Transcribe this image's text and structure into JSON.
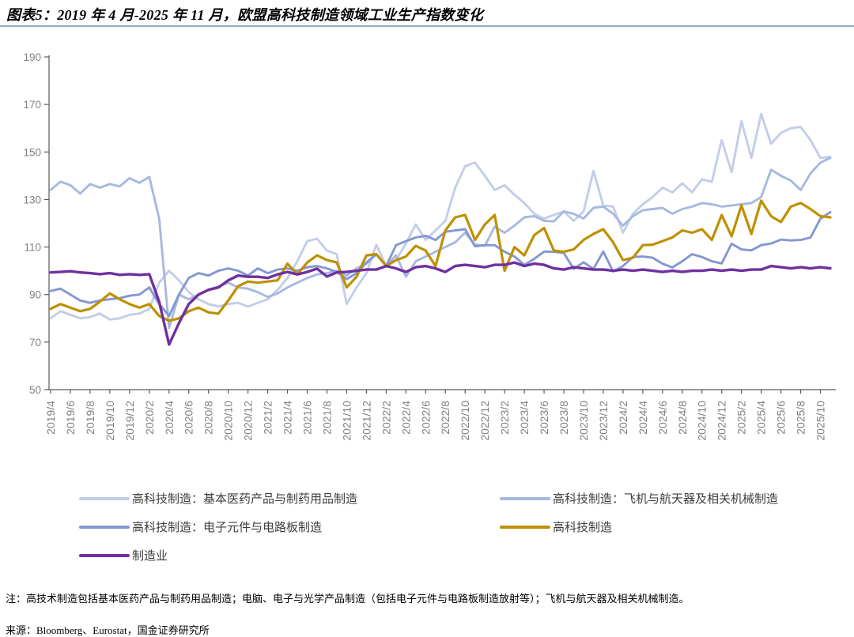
{
  "title": "图表5：2019 年 4 月-2025 年 11 月，欧盟高科技制造领域工业生产指数变化",
  "note": "注：高技术制造包括基本医药产品与制药用品制造；电脑、电子与光学产品制造（包括电子元件与电路板制造放射等）；飞机与航天器及相关机械制造。",
  "source": "来源：Bloomberg、Eurostat，国金证券研究所",
  "colors": {
    "title_rule": "#8fb0bf",
    "axis": "#595959",
    "tick_text": "#808080",
    "pharma": "#c3cde7",
    "aircraft": "#a6b9e0",
    "electronics": "#8398d2",
    "hightech": "#bf9000",
    "manufacturing": "#7030a0"
  },
  "chart_data": {
    "type": "line",
    "title": "图表5：2019 年 4 月-2025 年 11 月，欧盟高科技制造领域工业生产指数变化",
    "xlabel": "",
    "ylabel": "",
    "x_start": "2019/4",
    "x_end": "2025/11",
    "x_months_count": 80,
    "x_tick_labels": [
      "2019/4",
      "2019/6",
      "2019/8",
      "2019/10",
      "2019/12",
      "2020/2",
      "2020/4",
      "2020/6",
      "2020/8",
      "2020/10",
      "2020/12",
      "2021/2",
      "2021/4",
      "2021/6",
      "2021/8",
      "2021/10",
      "2021/12",
      "2022/2",
      "2022/4",
      "2022/6",
      "2022/8",
      "2022/10",
      "2022/12",
      "2023/2",
      "2023/4",
      "2023/6",
      "2023/8",
      "2023/10",
      "2023/12",
      "2024/2",
      "2024/4",
      "2024/6",
      "2024/8",
      "2024/10",
      "2024/12",
      "2025/2",
      "2025/4",
      "2025/6",
      "2025/8",
      "2025/10"
    ],
    "ylim": [
      50,
      190
    ],
    "y_ticks": [
      50,
      70,
      90,
      110,
      130,
      150,
      170,
      190
    ],
    "grid": false,
    "legend_position": "bottom",
    "series": [
      {
        "name": "高科技制造：基本医药产品与制药用品制造",
        "color": "#c3cde7",
        "values": [
          80,
          83,
          81.5,
          80,
          80.5,
          82,
          79.5,
          80,
          81.5,
          82,
          84,
          95,
          100,
          96,
          91,
          88,
          86,
          85,
          86,
          86.5,
          85,
          86.5,
          88,
          92,
          97,
          104,
          112.5,
          113.5,
          108.5,
          107,
          86,
          93,
          99,
          111,
          102,
          104.5,
          111.5,
          119.5,
          113,
          117,
          121,
          135,
          144,
          145.5,
          140,
          134,
          136,
          132,
          128.5,
          124,
          122,
          123.5,
          125,
          121,
          125,
          142,
          127.5,
          127,
          116,
          124,
          128,
          131,
          135,
          133,
          136.8,
          133,
          138.5,
          137.4,
          155,
          141.5,
          163,
          147.5,
          166,
          153.5,
          158,
          160,
          160.5,
          155,
          147.5,
          148
        ]
      },
      {
        "name": "高科技制造：飞机与航天器及相关机械制造",
        "color": "#a6b9e0",
        "values": [
          134,
          137.5,
          136,
          132.5,
          136.5,
          135,
          136.5,
          135.5,
          139,
          137,
          139.5,
          122,
          76,
          90,
          88,
          90,
          92,
          93.5,
          95,
          93,
          92.5,
          91,
          89,
          90.5,
          93,
          95,
          97,
          98.5,
          99,
          100,
          98,
          101,
          103,
          107,
          102,
          106.5,
          97.5,
          104,
          106,
          108,
          110,
          112,
          116,
          111,
          110.5,
          118.5,
          116,
          119,
          122.5,
          123,
          121,
          120.8,
          125,
          124,
          122,
          126.5,
          127,
          124,
          119,
          123,
          125.5,
          126,
          126.5,
          124,
          126,
          127,
          128.5,
          128,
          127,
          127.5,
          128,
          128.5,
          131,
          142.5,
          140,
          138,
          134,
          141,
          145.5,
          147.5
        ]
      },
      {
        "name": "高科技制造：电子元件与电路板制造",
        "color": "#8398d2",
        "values": [
          91.5,
          92.5,
          90,
          87.5,
          86.5,
          87.5,
          88,
          88.5,
          89.5,
          90,
          93,
          86,
          81,
          90,
          97,
          99,
          98,
          100,
          101,
          100,
          98,
          101,
          99,
          100.5,
          101,
          100,
          101.5,
          102,
          101,
          99.5,
          96.5,
          99,
          103.5,
          107,
          102,
          110.8,
          112.5,
          114,
          114.7,
          113,
          116.4,
          117,
          117.5,
          110.3,
          110.8,
          110.8,
          108,
          106,
          102.5,
          105,
          108.1,
          108,
          107.5,
          100.8,
          103.6,
          100.8,
          108.1,
          99.7,
          102,
          105.8,
          106,
          105.5,
          103,
          101.4,
          104,
          107,
          105.8,
          104,
          103.1,
          111.4,
          109,
          108.6,
          110.8,
          111.5,
          113.1,
          112.8,
          113,
          114,
          121.9,
          124.7
        ]
      },
      {
        "name": "高科技制造",
        "color": "#bf9000",
        "values": [
          84,
          86,
          84.5,
          83,
          84,
          87,
          90.5,
          88,
          86,
          84.5,
          86,
          81,
          79,
          80,
          83,
          84.5,
          82.5,
          82,
          87.5,
          93.5,
          95.5,
          95,
          95.5,
          96,
          103,
          98.5,
          103.5,
          106.5,
          104.5,
          103.5,
          93,
          97.5,
          106.5,
          107,
          102,
          104.5,
          106,
          110.5,
          108.5,
          102,
          117,
          122.5,
          123.5,
          113,
          119.5,
          123.5,
          100,
          110,
          106.5,
          115,
          118,
          108.5,
          108,
          109,
          113,
          115.5,
          117.5,
          112,
          104.5,
          105.5,
          110.8,
          111,
          112.5,
          114,
          117,
          116,
          117.5,
          113,
          123.5,
          114.5,
          127.5,
          115.5,
          129.5,
          123,
          120.5,
          127,
          128.5,
          126,
          123,
          122.5
        ]
      },
      {
        "name": "制造业",
        "color": "#7030a0",
        "values": [
          99.3,
          99.5,
          99.8,
          99.3,
          99,
          98.6,
          99,
          98.3,
          98.6,
          98.3,
          98.6,
          87,
          69,
          78,
          86,
          90,
          92,
          93,
          96,
          98,
          97.5,
          97.5,
          97,
          98.5,
          99.5,
          98.5,
          99.5,
          100.9,
          97.6,
          99.3,
          99.5,
          100,
          100.5,
          100.5,
          102,
          101,
          99.5,
          101.5,
          102,
          101,
          99.5,
          102,
          102.5,
          102,
          101.5,
          102.5,
          102.5,
          103.5,
          102,
          103,
          102.5,
          101,
          100.5,
          101.5,
          101,
          100.5,
          100.5,
          100,
          100.5,
          100,
          100.5,
          100,
          99.5,
          100,
          99.5,
          100,
          100,
          100.5,
          100,
          100.5,
          100,
          100.5,
          100.5,
          102,
          101.5,
          101,
          101.5,
          101,
          101.5,
          101
        ]
      }
    ]
  }
}
